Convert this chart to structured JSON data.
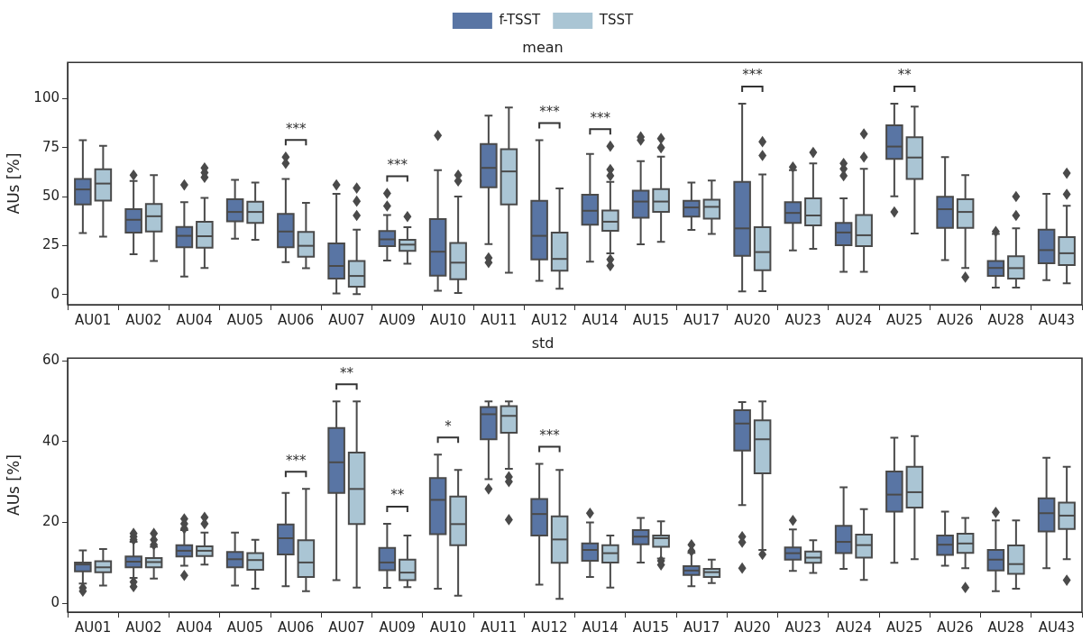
{
  "chart_data": [
    {
      "type": "box",
      "title": "mean",
      "ylabel": "AUs [%]",
      "legend": "top",
      "grid": false,
      "marker": "diamond",
      "categories": [
        "AU01",
        "AU02",
        "AU04",
        "AU05",
        "AU06",
        "AU07",
        "AU09",
        "AU10",
        "AU11",
        "AU12",
        "AU14",
        "AU15",
        "AU17",
        "AU20",
        "AU23",
        "AU24",
        "AU25",
        "AU26",
        "AU28",
        "AU43"
      ],
      "ylim": [
        -5.2,
        118.6
      ],
      "yticks": [
        0,
        25,
        50,
        75,
        100
      ],
      "series": [
        {
          "name": "f-TSST",
          "color": "#5975a4",
          "boxes": [
            {
              "low": 31.4,
              "q1": 46,
              "median": 53.7,
              "q3": 59,
              "high": 78.8
            },
            {
              "low": 20.6,
              "q1": 31.7,
              "median": 38.2,
              "q3": 43.6,
              "high": 58,
              "outliers": [
                61
              ]
            },
            {
              "low": 9.2,
              "q1": 24.2,
              "median": 30,
              "q3": 34.5,
              "high": 47.2,
              "outliers": [
                56
              ]
            },
            {
              "low": 28.5,
              "q1": 37.4,
              "median": 42.2,
              "q3": 48.7,
              "high": 58.6
            },
            {
              "low": 16.6,
              "q1": 24.2,
              "median": 32.2,
              "q3": 41.2,
              "high": 59,
              "outliers": [
                67,
                70.2
              ]
            },
            {
              "low": 0.5,
              "q1": 8.1,
              "median": 14.6,
              "q3": 26.1,
              "high": 51.5,
              "outliers": [
                56
              ]
            },
            {
              "low": 17.4,
              "q1": 24.7,
              "median": 28.2,
              "q3": 32.5,
              "high": 40.6,
              "outliers": [
                45.2,
                51.7
              ]
            },
            {
              "low": 1.9,
              "q1": 9.7,
              "median": 21.9,
              "q3": 38.5,
              "high": 63.5,
              "outliers": [
                81.3
              ]
            },
            {
              "low": 25.8,
              "q1": 54.8,
              "median": 64.7,
              "q3": 76.9,
              "high": 91.4,
              "outliers": [
                18.7,
                16.3
              ]
            },
            {
              "low": 7,
              "q1": 17.9,
              "median": 30,
              "q3": 47.9,
              "high": 78.8
            },
            {
              "low": 16.8,
              "q1": 35.7,
              "median": 42.8,
              "q3": 51,
              "high": 71.8
            },
            {
              "low": 25.7,
              "q1": 39.3,
              "median": 47.5,
              "q3": 53.1,
              "high": 68.1,
              "outliers": [
                78.9,
                80.5
              ]
            },
            {
              "low": 33,
              "q1": 39.8,
              "median": 44.5,
              "q3": 47.9,
              "high": 57.2
            },
            {
              "low": 1.6,
              "q1": 19.8,
              "median": 33.8,
              "q3": 57.5,
              "high": 97.5
            },
            {
              "low": 22.5,
              "q1": 36.6,
              "median": 41.7,
              "q3": 47.2,
              "high": 63.5,
              "outliers": [
                65.1
              ]
            },
            {
              "low": 11.6,
              "q1": 25.2,
              "median": 31.7,
              "q3": 36.6,
              "high": 49.1,
              "outliers": [
                60.7,
                64.2,
                67
              ]
            },
            {
              "low": 50.2,
              "q1": 69.3,
              "median": 75.6,
              "q3": 86.4,
              "high": 97.5,
              "outliers": [
                42.2
              ]
            },
            {
              "low": 17.6,
              "q1": 34.1,
              "median": 43.6,
              "q3": 49.9,
              "high": 70.2
            },
            {
              "low": 3.6,
              "q1": 9.5,
              "median": 13.6,
              "q3": 17.1,
              "high": 30.9,
              "outliers": [
                32.2
              ]
            },
            {
              "low": 7.3,
              "q1": 16,
              "median": 22.7,
              "q3": 33.1,
              "high": 51.5
            }
          ]
        },
        {
          "name": "TSST",
          "color": "#aac5d4",
          "boxes": [
            {
              "low": 29.6,
              "q1": 48,
              "median": 56.7,
              "q3": 64,
              "high": 76
            },
            {
              "low": 17.1,
              "q1": 32.2,
              "median": 40,
              "q3": 46.3,
              "high": 61
            },
            {
              "low": 13.6,
              "q1": 23.9,
              "median": 29.8,
              "q3": 37.2,
              "high": 49.4,
              "outliers": [
                59.9,
                62.3,
                64.7
              ]
            },
            {
              "low": 28,
              "q1": 36.6,
              "median": 42.2,
              "q3": 47.4,
              "high": 57.2
            },
            {
              "low": 13.5,
              "q1": 19.3,
              "median": 24.9,
              "q3": 32,
              "high": 46.9
            },
            {
              "low": 0.2,
              "q1": 4,
              "median": 9.5,
              "q3": 17.1,
              "high": 33.1,
              "outliers": [
                40.4,
                47.7,
                54.4
              ]
            },
            {
              "low": 15.8,
              "q1": 22.3,
              "median": 25.5,
              "q3": 28,
              "high": 34.4,
              "outliers": [
                39.8
              ]
            },
            {
              "low": 0.8,
              "q1": 7.8,
              "median": 16.3,
              "q3": 26.3,
              "high": 50.1,
              "outliers": [
                58,
                61
              ]
            },
            {
              "low": 11.1,
              "q1": 46,
              "median": 62.9,
              "q3": 74.3,
              "high": 95.6
            },
            {
              "low": 3,
              "q1": 12.2,
              "median": 18.2,
              "q3": 31.7,
              "high": 54.2
            },
            {
              "low": 21.1,
              "q1": 32.6,
              "median": 37.2,
              "q3": 42.9,
              "high": 57.5,
              "outliers": [
                60.7,
                63.9,
                75.8,
                17.9,
                14.7
              ]
            },
            {
              "low": 26.9,
              "q1": 42.2,
              "median": 47.5,
              "q3": 53.9,
              "high": 70.5,
              "outliers": [
                75,
                79.7
              ]
            },
            {
              "low": 30.9,
              "q1": 38.8,
              "median": 44.8,
              "q3": 48.5,
              "high": 58.3
            },
            {
              "low": 1.7,
              "q1": 12.4,
              "median": 21.7,
              "q3": 34.4,
              "high": 61.3,
              "outliers": [
                71,
                78.1
              ]
            },
            {
              "low": 23.3,
              "q1": 35.3,
              "median": 40.4,
              "q3": 49.1,
              "high": 67,
              "outliers": [
                72.6
              ]
            },
            {
              "low": 11.6,
              "q1": 24.7,
              "median": 30.3,
              "q3": 40.6,
              "high": 64.2,
              "outliers": [
                70.2,
                82.1
              ]
            },
            {
              "low": 31.2,
              "q1": 59.1,
              "median": 70,
              "q3": 80.3,
              "high": 96
            },
            {
              "low": 13.6,
              "q1": 34.1,
              "median": 42.2,
              "q3": 48.7,
              "high": 61,
              "outliers": [
                8.9
              ]
            },
            {
              "low": 3.6,
              "q1": 8.1,
              "median": 13.5,
              "q3": 19.5,
              "high": 33.8,
              "outliers": [
                40.4,
                50.1
              ]
            },
            {
              "low": 5.7,
              "q1": 15.1,
              "median": 21.1,
              "q3": 29.3,
              "high": 45.3,
              "outliers": [
                51.2,
                62
              ]
            }
          ]
        }
      ],
      "annotations": [
        "***",
        "***",
        "***",
        "***",
        "***",
        "**"
      ]
    },
    {
      "type": "box",
      "title": "std",
      "ylabel": "AUs [%]",
      "grid": false,
      "marker": "diamond",
      "categories": [
        "AU01",
        "AU02",
        "AU04",
        "AU05",
        "AU06",
        "AU07",
        "AU09",
        "AU10",
        "AU11",
        "AU12",
        "AU14",
        "AU15",
        "AU17",
        "AU20",
        "AU23",
        "AU24",
        "AU25",
        "AU26",
        "AU28",
        "AU43"
      ],
      "ylim": [
        -2.2,
        60.7
      ],
      "yticks": [
        0,
        20,
        40,
        60
      ],
      "series": [
        {
          "color": "#5975a4",
          "boxes": [
            {
              "low": 4.9,
              "q1": 7.9,
              "median": 9.6,
              "q3": 10.1,
              "high": 13.1,
              "outliers": [
                3.8,
                3
              ]
            },
            {
              "low": 6.3,
              "q1": 8.9,
              "median": 10.3,
              "q3": 11.6,
              "high": 15.2,
              "outliers": [
                15.7,
                16.5,
                17.3,
                5.3,
                4.1
              ]
            },
            {
              "low": 9.3,
              "q1": 11.6,
              "median": 13,
              "q3": 14.4,
              "high": 18.1,
              "outliers": [
                18.5,
                19.7,
                20.9,
                6.9
              ]
            },
            {
              "low": 4.4,
              "q1": 8.9,
              "median": 10.9,
              "q3": 12.7,
              "high": 17.5
            },
            {
              "low": 4.2,
              "q1": 12.1,
              "median": 16.1,
              "q3": 19.5,
              "high": 27.3
            },
            {
              "low": 5.7,
              "q1": 27.3,
              "median": 34.9,
              "q3": 43.4,
              "high": 50
            },
            {
              "low": 3.8,
              "q1": 8.2,
              "median": 10.1,
              "q3": 13.7,
              "high": 19.7
            },
            {
              "low": 3.6,
              "q1": 17.1,
              "median": 25.6,
              "q3": 31,
              "high": 36.8
            },
            {
              "low": 30.7,
              "q1": 40.6,
              "median": 46.8,
              "q3": 48.6,
              "high": 50,
              "outliers": [
                28.3
              ]
            },
            {
              "low": 4.6,
              "q1": 16.8,
              "median": 22.1,
              "q3": 25.8,
              "high": 34.5
            },
            {
              "low": 6.5,
              "q1": 10.5,
              "median": 13.2,
              "q3": 14.8,
              "high": 20,
              "outliers": [
                22.3
              ]
            },
            {
              "low": 10.1,
              "q1": 14.6,
              "median": 16.5,
              "q3": 18.1,
              "high": 21.1
            },
            {
              "low": 4.2,
              "q1": 7,
              "median": 8.1,
              "q3": 9.2,
              "high": 12.5,
              "outliers": [
                12.9,
                14.5
              ]
            },
            {
              "low": 24.3,
              "q1": 37.8,
              "median": 44.5,
              "q3": 47.8,
              "high": 49.8,
              "outliers": [
                16.5,
                15.1,
                8.7
              ]
            },
            {
              "low": 8,
              "q1": 10.8,
              "median": 12.4,
              "q3": 13.8,
              "high": 18.3,
              "outliers": [
                20.5
              ]
            },
            {
              "low": 8.5,
              "q1": 12.4,
              "median": 15.2,
              "q3": 19.2,
              "high": 28.7
            },
            {
              "low": 10,
              "q1": 22.7,
              "median": 26.9,
              "q3": 32.6,
              "high": 41
            },
            {
              "low": 9.3,
              "q1": 12,
              "median": 14.5,
              "q3": 16.8,
              "high": 22.7
            },
            {
              "low": 3,
              "q1": 8.1,
              "median": 10.8,
              "q3": 13.2,
              "high": 20.5,
              "outliers": [
                22.5
              ]
            },
            {
              "low": 8.7,
              "q1": 17.8,
              "median": 22.3,
              "q3": 26,
              "high": 36
            }
          ]
        },
        {
          "color": "#aac5d4",
          "boxes": [
            {
              "low": 4.4,
              "q1": 7.7,
              "median": 8.9,
              "q3": 10.4,
              "high": 13.4
            },
            {
              "low": 6.1,
              "q1": 8.9,
              "median": 10.2,
              "q3": 11.2,
              "high": 14,
              "outliers": [
                14.5,
                15.7,
                17.3
              ]
            },
            {
              "low": 9.6,
              "q1": 11.7,
              "median": 13,
              "q3": 14.1,
              "high": 17.5,
              "outliers": [
                19.7,
                21.3
              ]
            },
            {
              "low": 3.6,
              "q1": 8.3,
              "median": 10.7,
              "q3": 12.4,
              "high": 15.7
            },
            {
              "low": 3,
              "q1": 6.5,
              "median": 10.1,
              "q3": 15.6,
              "high": 28.3
            },
            {
              "low": 3.9,
              "q1": 19.6,
              "median": 28.3,
              "q3": 37.3,
              "high": 50
            },
            {
              "low": 4,
              "q1": 5.7,
              "median": 7.6,
              "q3": 10.8,
              "high": 16.8
            },
            {
              "low": 1.9,
              "q1": 14.4,
              "median": 19.6,
              "q3": 26.4,
              "high": 33
            },
            {
              "low": 33.3,
              "q1": 42.2,
              "median": 46.4,
              "q3": 48.8,
              "high": 50,
              "outliers": [
                31.3,
                30.1,
                20.7
              ]
            },
            {
              "low": 1.1,
              "q1": 10,
              "median": 15.8,
              "q3": 21.5,
              "high": 33
            },
            {
              "low": 3.9,
              "q1": 10.1,
              "median": 12.4,
              "q3": 14.4,
              "high": 16.8
            },
            {
              "low": 11.1,
              "q1": 14,
              "median": 16.1,
              "q3": 16.8,
              "high": 20.3,
              "outliers": [
                10.5,
                9.5
              ]
            },
            {
              "low": 5,
              "q1": 6.5,
              "median": 7.7,
              "q3": 8.5,
              "high": 10.8
            },
            {
              "low": 13.2,
              "q1": 32.2,
              "median": 40.6,
              "q3": 45.3,
              "high": 50,
              "outliers": [
                12.1
              ]
            },
            {
              "low": 7.5,
              "q1": 10,
              "median": 11.3,
              "q3": 12.8,
              "high": 15.6
            },
            {
              "low": 5.8,
              "q1": 11.3,
              "median": 14.4,
              "q3": 17,
              "high": 23.3
            },
            {
              "low": 10.9,
              "q1": 23.7,
              "median": 27.5,
              "q3": 33.8,
              "high": 41.4
            },
            {
              "low": 8.7,
              "q1": 12.5,
              "median": 14.8,
              "q3": 17.2,
              "high": 21.1,
              "outliers": [
                3.9
              ]
            },
            {
              "low": 3.6,
              "q1": 7.3,
              "median": 9.7,
              "q3": 14.3,
              "high": 20.5
            },
            {
              "low": 10.9,
              "q1": 18.4,
              "median": 21.7,
              "q3": 24.9,
              "high": 33.8,
              "outliers": [
                5.7
              ]
            }
          ]
        }
      ],
      "annotations": [
        "***",
        "**",
        "**",
        "*",
        "***"
      ]
    }
  ]
}
